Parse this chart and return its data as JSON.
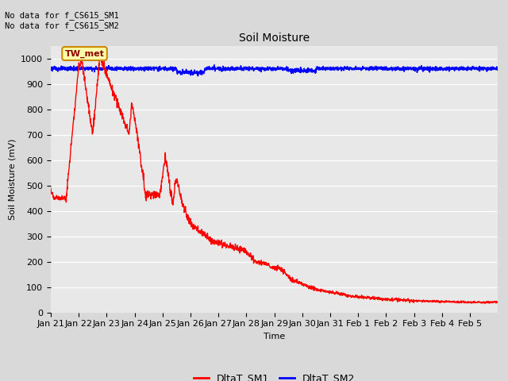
{
  "title": "Soil Moisture",
  "ylabel": "Soil Moisture (mV)",
  "xlabel": "Time",
  "annotation_text": "No data for f_CS615_SM1\nNo data for f_CS615_SM2",
  "tooltip_text": "TW_met",
  "ylim": [
    0,
    1050
  ],
  "yticks": [
    0,
    100,
    200,
    300,
    400,
    500,
    600,
    700,
    800,
    900,
    1000
  ],
  "background_color": "#d9d9d9",
  "plot_bg_color": "#e8e8e8",
  "sm1_color": "#ff0000",
  "sm2_color": "#0000ff",
  "legend_sm1": "DltaT_SM1",
  "legend_sm2": "DltaT_SM2",
  "title_fontsize": 10,
  "label_fontsize": 8,
  "tick_fontsize": 8
}
